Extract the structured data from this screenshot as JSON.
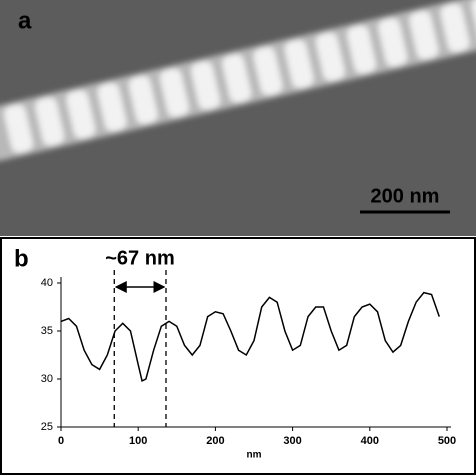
{
  "panel_a": {
    "label": "a",
    "scale_bar": "200 nm"
  },
  "chart_data": {
    "type": "line",
    "panel_label": "b",
    "annotation": "~67 nm",
    "x_label": "nm",
    "x": [
      0,
      10,
      20,
      30,
      40,
      50,
      60,
      70,
      80,
      90,
      100,
      105,
      110,
      120,
      130,
      140,
      150,
      160,
      170,
      180,
      190,
      200,
      210,
      220,
      230,
      240,
      250,
      260,
      270,
      280,
      290,
      300,
      310,
      320,
      330,
      340,
      350,
      360,
      370,
      380,
      390,
      400,
      410,
      420,
      430,
      440,
      450,
      460,
      470,
      480,
      490
    ],
    "series": [
      {
        "color": "#000000",
        "values": [
          36,
          36.3,
          35.5,
          33,
          31.5,
          31,
          32.5,
          35,
          35.8,
          35,
          31.5,
          29.8,
          30,
          33,
          35.5,
          36,
          35.5,
          33.5,
          32.5,
          33.5,
          36.5,
          37,
          36.8,
          35,
          33,
          32.5,
          34,
          37.5,
          38.5,
          38,
          35,
          33,
          33.5,
          36.5,
          37.5,
          37.5,
          35,
          33,
          33.5,
          36.5,
          37.5,
          37.8,
          37,
          34,
          32.8,
          33.5,
          36,
          38,
          39,
          38.8,
          36.5
        ]
      }
    ],
    "markers": [
      69,
      136
    ],
    "xlim": [
      0,
      500
    ],
    "xticks": [
      0,
      100,
      200,
      300,
      400,
      500
    ],
    "ylim": [
      25,
      40
    ],
    "yticks": [
      25,
      30,
      35,
      40
    ]
  }
}
